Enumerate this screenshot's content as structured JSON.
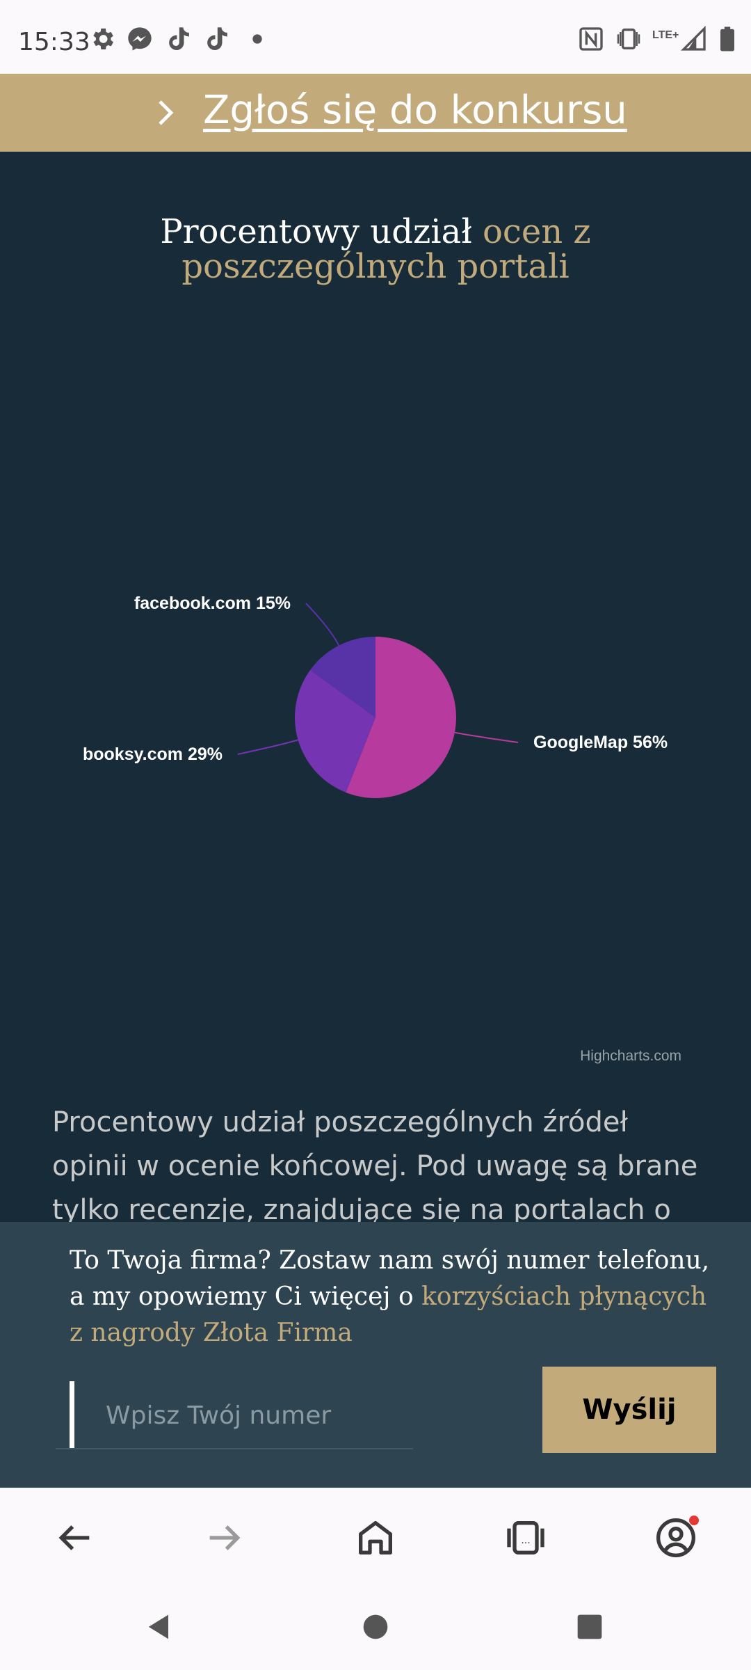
{
  "status_bar": {
    "time": "15:33",
    "left_icons": [
      "settings-icon",
      "messenger-icon",
      "tiktok-icon",
      "tiktok-icon",
      "dot-icon"
    ],
    "right_icons": [
      "nfc-icon",
      "vibrate-icon",
      "lte-signal-icon",
      "battery-icon"
    ],
    "network_label": "LTE+"
  },
  "banner": {
    "link_text": "Zgłoś się do konkursu",
    "background": "#c2aa7a"
  },
  "chart_section": {
    "title_plain": "Procentowy udział ",
    "title_accent": "ocen z poszczególnych portali"
  },
  "chart_data": {
    "type": "pie",
    "slices": [
      {
        "label": "GoogleMap",
        "value": 56,
        "color": "#b73b9f"
      },
      {
        "label": "booksy.com",
        "value": 29,
        "color": "#7534b2"
      },
      {
        "label": "facebook.com",
        "value": 15,
        "color": "#5833a8"
      }
    ],
    "credits": "Highcharts.com"
  },
  "description": "Procentowy udział poszczególnych źródeł opinii w ocenie końcowej. Pod uwagę są brane tylko recenzje, znajdujące się na portalach o najwyższej",
  "popup": {
    "text_plain": "To Twoja firma? Zostaw nam swój numer telefonu, a my opowiemy Ci więcej o ",
    "text_accent": "korzyściach płynących z nagrody Złota Firma",
    "input_placeholder": "Wpisz Twój numer",
    "input_value": "",
    "button_label": "Wyślij"
  },
  "bottom_nav": {
    "items": [
      "back-icon",
      "forward-icon",
      "home-icon",
      "tabs-icon",
      "account-icon"
    ]
  },
  "colors": {
    "page_background": "#172b38",
    "accent": "#c2aa7a",
    "popup_background": "#2e4450"
  }
}
